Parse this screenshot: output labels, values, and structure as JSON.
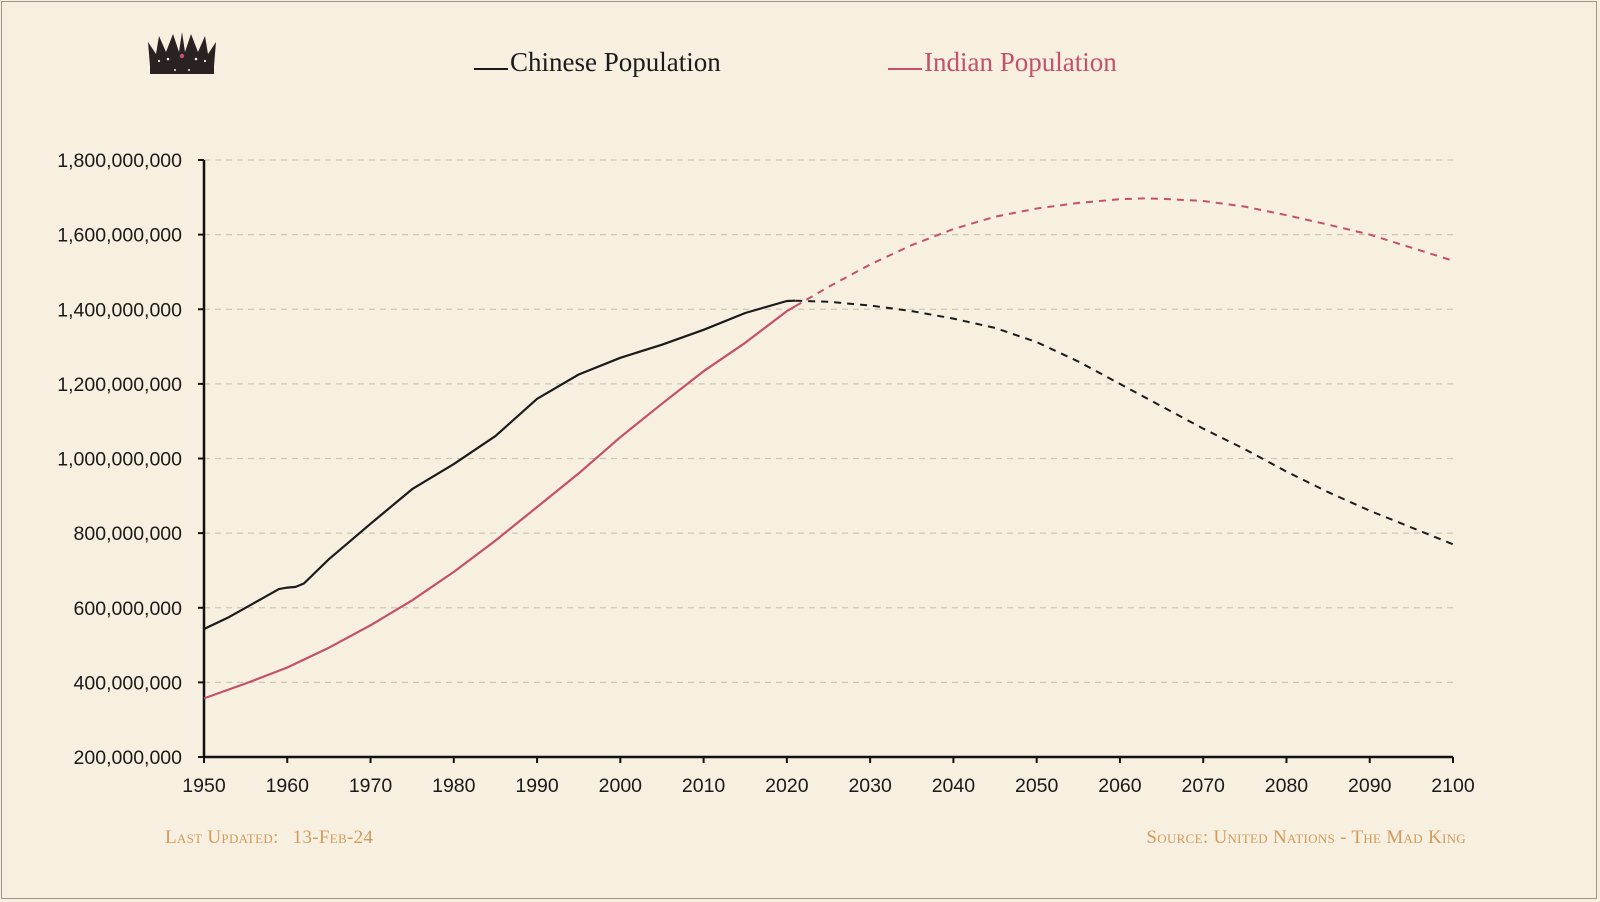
{
  "colors": {
    "background": "#f7efdf",
    "chinese": "#1b1b1b",
    "indian": "#c4506a",
    "grid": "#cfc7b6",
    "footer": "#d39a5c"
  },
  "logo": {
    "icon": "crown-icon"
  },
  "legend": [
    {
      "label": "Chinese Population",
      "color": "#1b1b1b"
    },
    {
      "label": "Indian Population",
      "color": "#c4506a"
    }
  ],
  "footer": {
    "updated_label": "Last Updated:",
    "updated_value": "13-Feb-24",
    "source": "Source: United Nations - The Mad King"
  },
  "chart_data": {
    "type": "line",
    "title": "",
    "xlabel": "",
    "ylabel": "",
    "xlim": [
      1950,
      2100
    ],
    "ylim": [
      200000000,
      1800000000
    ],
    "x_ticks": [
      1950,
      1960,
      1970,
      1980,
      1990,
      2000,
      2010,
      2020,
      2030,
      2040,
      2050,
      2060,
      2070,
      2080,
      2090,
      2100
    ],
    "y_ticks": [
      200000000,
      400000000,
      600000000,
      800000000,
      1000000000,
      1200000000,
      1400000000,
      1600000000,
      1800000000
    ],
    "grid": "horizontal dashed",
    "legend_position": "top",
    "projection_style": "dashed after 2021",
    "series": [
      {
        "name": "Chinese Population",
        "color": "#1b1b1b",
        "historical": {
          "x": [
            1950,
            1953,
            1955,
            1957,
            1959,
            1960,
            1961,
            1962,
            1965,
            1970,
            1975,
            1980,
            1985,
            1990,
            1995,
            2000,
            2005,
            2010,
            2015,
            2020,
            2021
          ],
          "y": [
            543000000,
            575000000,
            600000000,
            625000000,
            650000000,
            654000000,
            656000000,
            665000000,
            730000000,
            825000000,
            918000000,
            985000000,
            1060000000,
            1160000000,
            1225000000,
            1270000000,
            1305000000,
            1345000000,
            1390000000,
            1422000000,
            1423000000
          ]
        },
        "projection": {
          "x": [
            2021,
            2025,
            2030,
            2035,
            2040,
            2045,
            2050,
            2055,
            2060,
            2065,
            2070,
            2075,
            2080,
            2085,
            2090,
            2095,
            2100
          ],
          "y": [
            1423000000,
            1420000000,
            1410000000,
            1395000000,
            1375000000,
            1350000000,
            1312000000,
            1260000000,
            1200000000,
            1140000000,
            1080000000,
            1025000000,
            965000000,
            910000000,
            860000000,
            815000000,
            770000000
          ]
        }
      },
      {
        "name": "Indian Population",
        "color": "#c4506a",
        "historical": {
          "x": [
            1950,
            1955,
            1960,
            1965,
            1970,
            1975,
            1980,
            1985,
            1990,
            1995,
            2000,
            2005,
            2010,
            2015,
            2020,
            2021
          ],
          "y": [
            357000000,
            397000000,
            440000000,
            493000000,
            553000000,
            620000000,
            696000000,
            780000000,
            870000000,
            960000000,
            1057000000,
            1147000000,
            1234000000,
            1310000000,
            1395000000,
            1408000000
          ]
        },
        "projection": {
          "x": [
            2021,
            2025,
            2030,
            2035,
            2040,
            2045,
            2050,
            2055,
            2060,
            2063,
            2065,
            2070,
            2075,
            2080,
            2085,
            2090,
            2095,
            2100
          ],
          "y": [
            1408000000,
            1460000000,
            1520000000,
            1572000000,
            1615000000,
            1648000000,
            1670000000,
            1685000000,
            1695000000,
            1697000000,
            1696000000,
            1690000000,
            1675000000,
            1652000000,
            1627000000,
            1600000000,
            1565000000,
            1530000000
          ]
        }
      }
    ]
  }
}
